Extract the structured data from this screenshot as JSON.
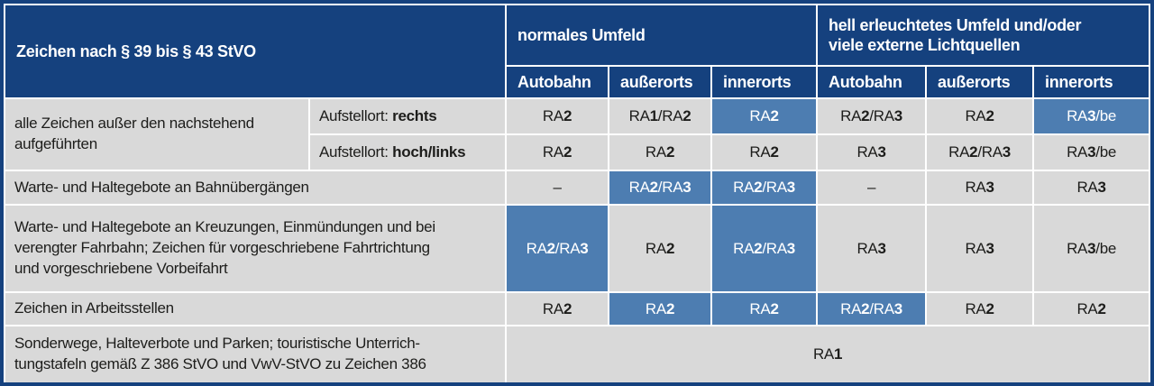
{
  "colors": {
    "header_blue": "#15417e",
    "highlight_blue": "#4d7db1",
    "cell_gray": "#d9d9d9",
    "header_text": "#ffffff",
    "body_text": "#1d1d1b"
  },
  "table": {
    "corner_header": "Zeichen nach § 39 bis § 43 StVO",
    "group_headers": [
      "normales Umfeld",
      "hell erleuchtetes Umfeld und/oder\nviele externe Lichtquellen"
    ],
    "col_headers": [
      "Autobahn",
      "außerorts",
      "innerorts",
      "Autobahn",
      "außerorts",
      "innerorts"
    ],
    "rows": [
      {
        "label": "alle Zeichen außer den nachstehend\naufgeführten",
        "sublabel_prefix": "Aufstellort:",
        "sublabel_value": "rechts",
        "cells": [
          {
            "text": "RA2",
            "highlight": false
          },
          {
            "text": "RA1/RA2",
            "highlight": false
          },
          {
            "text": "RA2",
            "highlight": true
          },
          {
            "text": "RA2/RA3",
            "highlight": false
          },
          {
            "text": "RA2",
            "highlight": false
          },
          {
            "text": "RA3/be",
            "highlight": true
          }
        ]
      },
      {
        "sublabel_prefix": "Aufstellort:",
        "sublabel_value": "hoch/links",
        "cells": [
          {
            "text": "RA2",
            "highlight": false
          },
          {
            "text": "RA2",
            "highlight": false
          },
          {
            "text": "RA2",
            "highlight": false
          },
          {
            "text": "RA3",
            "highlight": false
          },
          {
            "text": "RA2/RA3",
            "highlight": false
          },
          {
            "text": "RA3/be",
            "highlight": false
          }
        ]
      },
      {
        "label": "Warte- und Haltegebote an Bahnübergängen",
        "cells": [
          {
            "text": "–",
            "highlight": false
          },
          {
            "text": "RA2/RA3",
            "highlight": true
          },
          {
            "text": "RA2/RA3",
            "highlight": true
          },
          {
            "text": "–",
            "highlight": false
          },
          {
            "text": "RA3",
            "highlight": false
          },
          {
            "text": "RA3",
            "highlight": false
          }
        ]
      },
      {
        "label": "Warte- und Haltegebote an Kreuzungen, Einmündungen und bei\nverengter Fahrbahn; Zeichen für vorgeschriebene Fahrtrichtung\nund vorgeschriebene Vorbeifahrt",
        "cells": [
          {
            "text": "RA2/RA3",
            "highlight": true
          },
          {
            "text": "RA2",
            "highlight": false
          },
          {
            "text": "RA2/RA3",
            "highlight": true
          },
          {
            "text": "RA3",
            "highlight": false
          },
          {
            "text": "RA3",
            "highlight": false
          },
          {
            "text": "RA3/be",
            "highlight": false
          }
        ]
      },
      {
        "label": "Zeichen in Arbeitsstellen",
        "cells": [
          {
            "text": "RA2",
            "highlight": false
          },
          {
            "text": "RA2",
            "highlight": true
          },
          {
            "text": "RA2",
            "highlight": true
          },
          {
            "text": "RA2/RA3",
            "highlight": true
          },
          {
            "text": "RA2",
            "highlight": false
          },
          {
            "text": "RA2",
            "highlight": false
          }
        ]
      },
      {
        "label": "Sonderwege, Halteverbote und Parken; touristische Unterrich-\ntungstafeln gemäß Z 386 StVO und VwV-StVO zu Zeichen 386",
        "cells": [
          {
            "text": "RA1",
            "highlight": false
          }
        ]
      }
    ]
  }
}
